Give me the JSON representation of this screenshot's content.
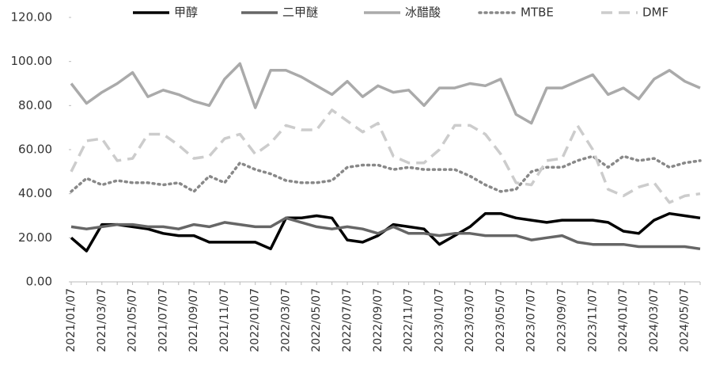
{
  "chart_data": {
    "type": "line",
    "categories": [
      "2021/01/07",
      null,
      "2021/03/07",
      null,
      "2021/05/07",
      null,
      "2021/07/07",
      null,
      "2021/09/07",
      null,
      "2021/11/07",
      null,
      "2022/01/07",
      null,
      "2022/03/07",
      null,
      "2022/05/07",
      null,
      "2022/07/07",
      null,
      "2022/09/07",
      null,
      "2022/11/07",
      null,
      "2023/01/07",
      null,
      "2023/03/07",
      null,
      "2023/05/07",
      null,
      "2023/07/07",
      null,
      "2023/09/07",
      null,
      "2023/11/07",
      null,
      "2024/01/07",
      null,
      "2024/03/07",
      null,
      "2024/05/07",
      null
    ],
    "series": [
      {
        "name": "甲醇",
        "color": "#000000",
        "dash": "solid",
        "values": [
          20,
          14,
          26,
          26,
          25,
          24,
          22,
          21,
          21,
          18,
          18,
          18,
          18,
          15,
          29,
          29,
          30,
          29,
          19,
          18,
          21,
          26,
          25,
          24,
          17,
          21,
          25,
          31,
          31,
          29,
          28,
          27,
          28,
          28,
          28,
          27,
          23,
          22,
          28,
          31,
          30,
          29
        ]
      },
      {
        "name": "二甲醚",
        "color": "#666666",
        "dash": "solid",
        "values": [
          25,
          24,
          25,
          26,
          26,
          25,
          25,
          24,
          26,
          25,
          27,
          26,
          25,
          25,
          29,
          27,
          25,
          24,
          25,
          24,
          22,
          25,
          22,
          22,
          21,
          22,
          22,
          21,
          21,
          21,
          19,
          20,
          21,
          18,
          17,
          17,
          17,
          16,
          16,
          16,
          16,
          15
        ]
      },
      {
        "name": "冰醋酸",
        "color": "#aaaaaa",
        "dash": "solid",
        "values": [
          90,
          81,
          86,
          90,
          95,
          84,
          87,
          85,
          82,
          80,
          92,
          99,
          79,
          96,
          96,
          93,
          89,
          85,
          91,
          84,
          89,
          86,
          87,
          80,
          88,
          88,
          90,
          89,
          92,
          76,
          72,
          88,
          88,
          91,
          94,
          85,
          88,
          83,
          92,
          96,
          91,
          88
        ]
      },
      {
        "name": "MTBE",
        "color": "#888888",
        "dash": "dotted",
        "values": [
          41,
          47,
          44,
          46,
          45,
          45,
          44,
          45,
          41,
          48,
          45,
          54,
          51,
          49,
          46,
          45,
          45,
          46,
          52,
          53,
          53,
          51,
          52,
          51,
          51,
          51,
          48,
          44,
          41,
          42,
          50,
          52,
          52,
          55,
          57,
          52,
          57,
          55,
          56,
          52,
          54,
          55
        ]
      },
      {
        "name": "DMF",
        "color": "#cccccc",
        "dash": "dashed",
        "values": [
          50,
          64,
          65,
          55,
          56,
          67,
          67,
          62,
          56,
          57,
          65,
          67,
          58,
          63,
          71,
          69,
          69,
          78,
          73,
          68,
          72,
          57,
          54,
          54,
          60,
          71,
          71,
          67,
          58,
          45,
          44,
          55,
          56,
          71,
          60,
          42,
          39,
          43,
          45,
          36,
          39,
          40
        ]
      }
    ],
    "ylim": [
      0,
      120
    ],
    "yticks": [
      {
        "value": 0,
        "label": "0.00"
      },
      {
        "value": 20,
        "label": "20.00"
      },
      {
        "value": 40,
        "label": "40.00"
      },
      {
        "value": 60,
        "label": "60.00"
      },
      {
        "value": 80,
        "label": "80.00"
      },
      {
        "value": 100,
        "label": "100.00"
      },
      {
        "value": 120,
        "label": "120.00"
      }
    ],
    "legend": "top"
  }
}
